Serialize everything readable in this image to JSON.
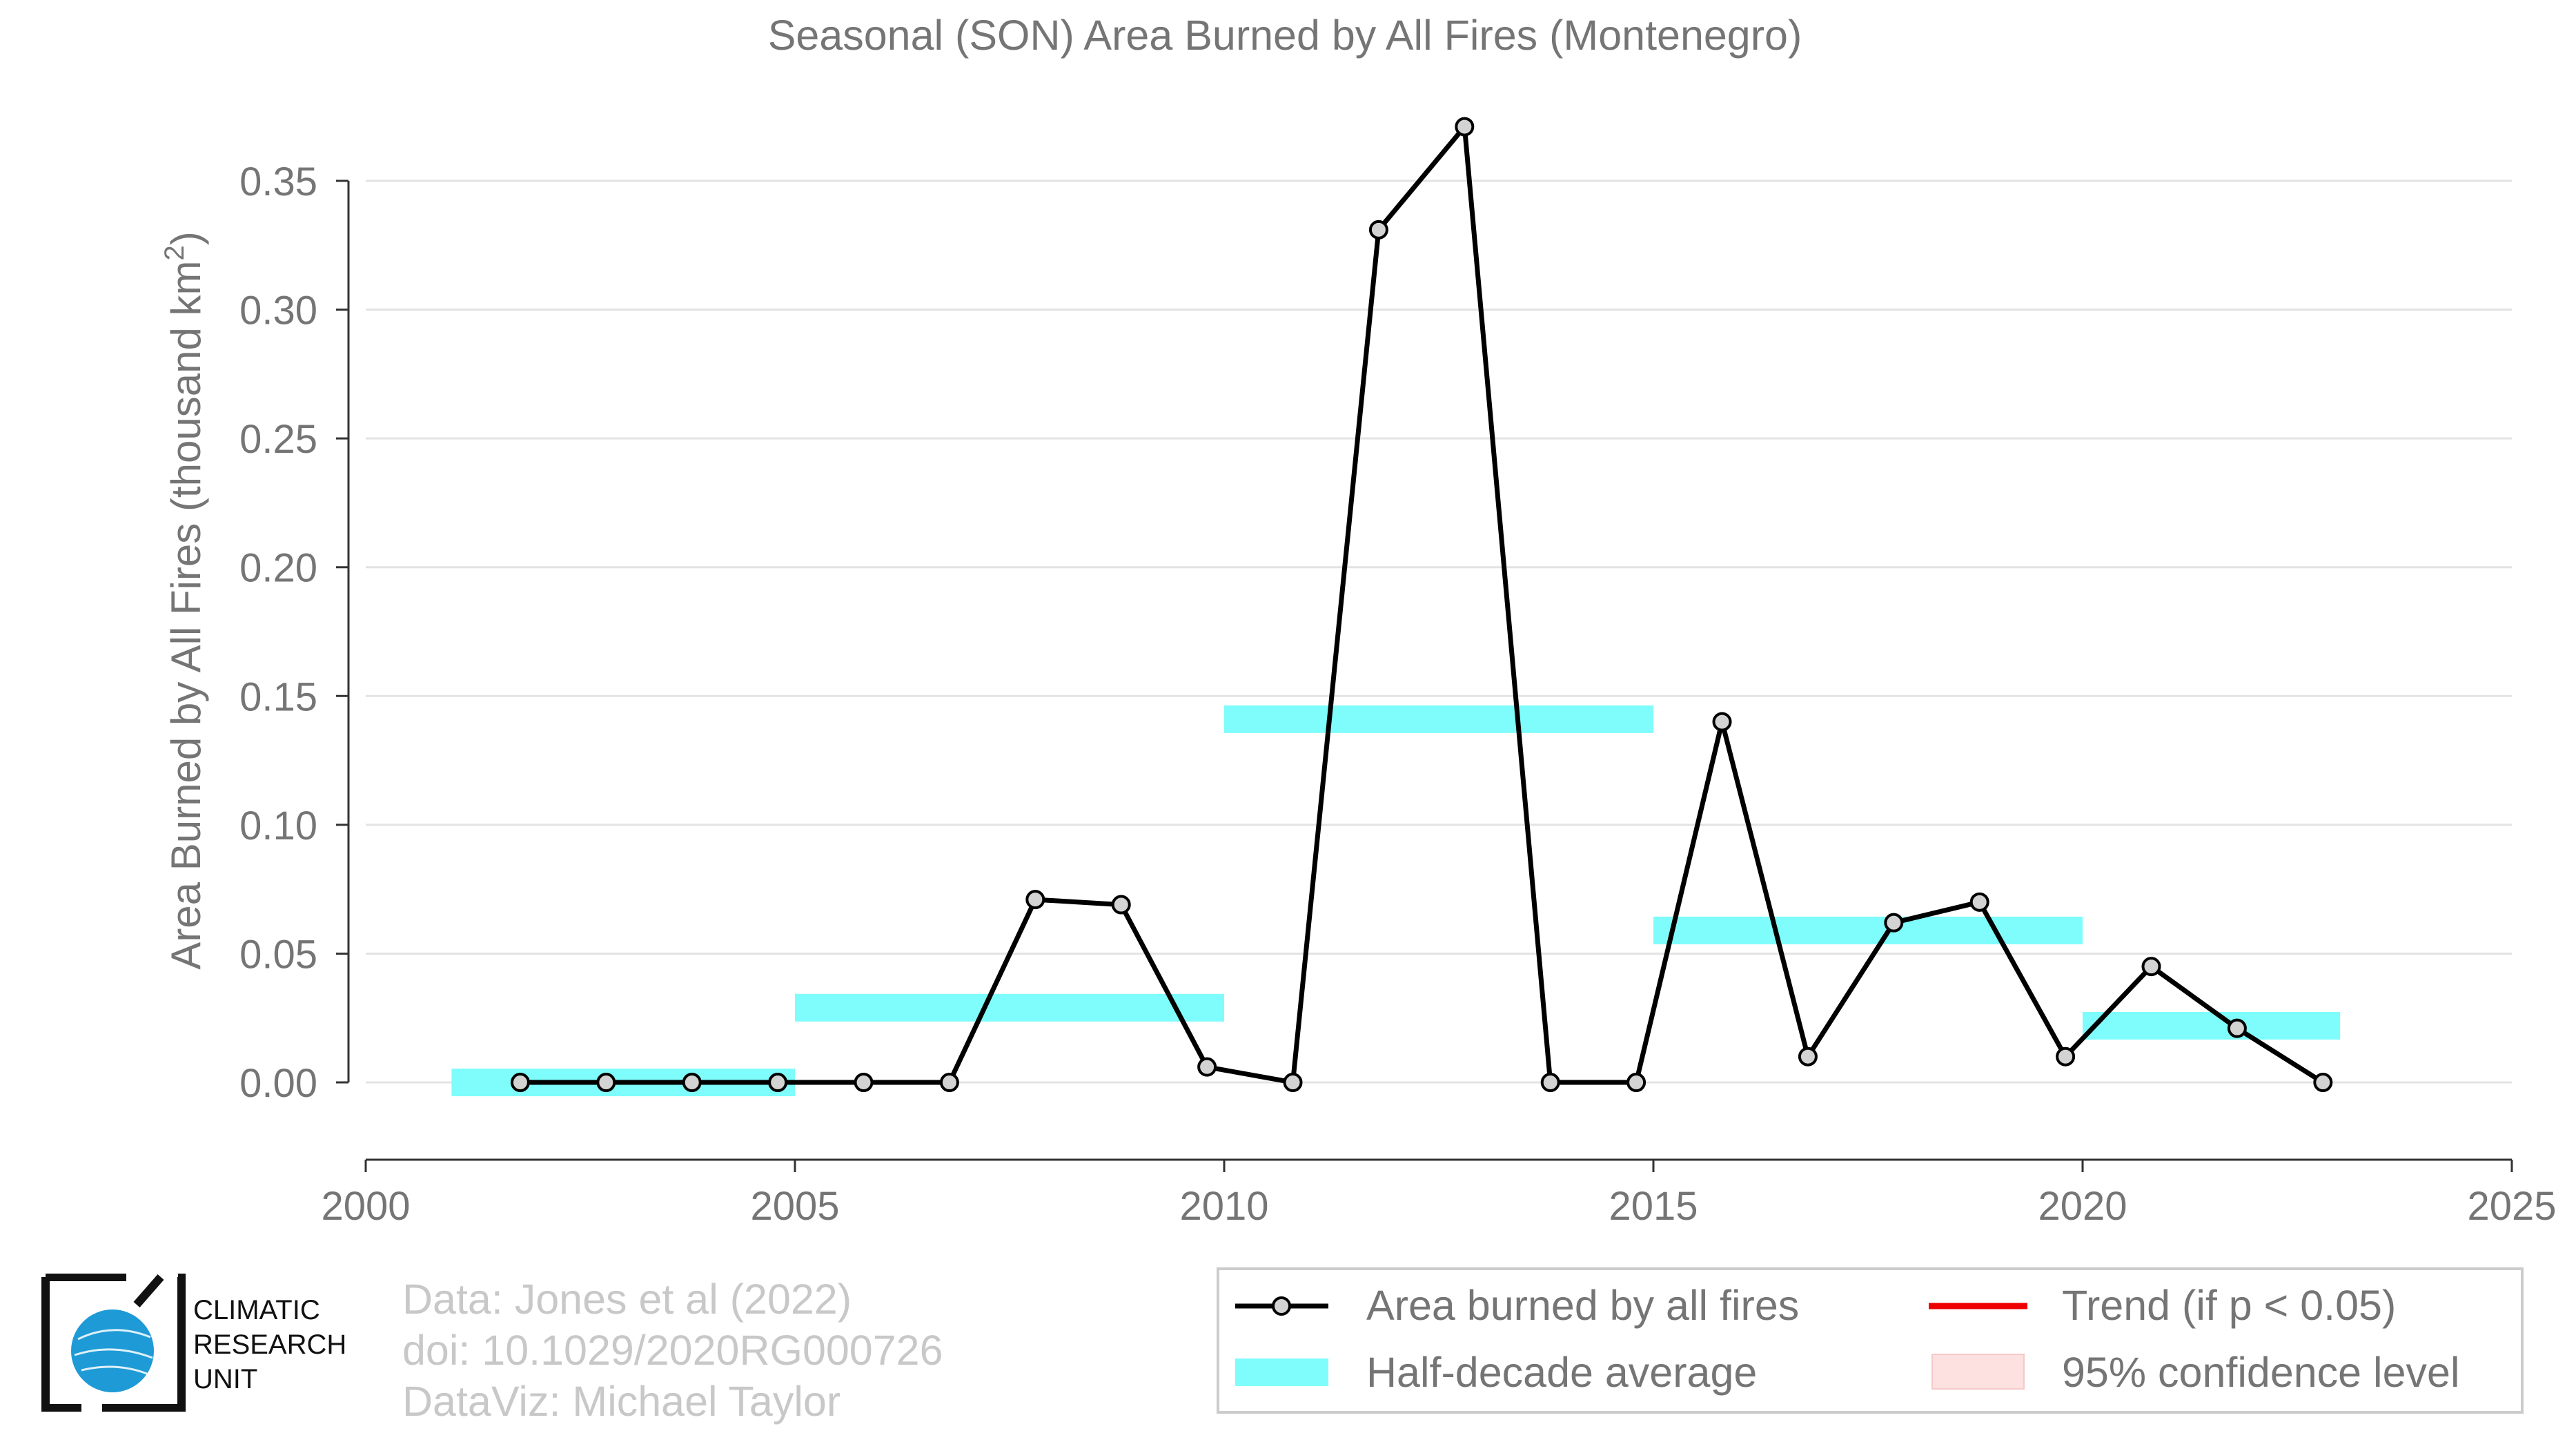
{
  "chart_data": {
    "type": "line",
    "title": "Seasonal (SON) Area Burned by All Fires (Montenegro)",
    "xlabel": "",
    "ylabel": "Area Burned by All Fires (thousand km²)",
    "ylabel_main": "Area Burned by All Fires (thousand km",
    "ylabel_sup": "2",
    "ylabel_end": ")",
    "xlim": [
      2000,
      2025
    ],
    "ylim": [
      -0.03,
      0.38
    ],
    "x_ticks": [
      2000,
      2005,
      2010,
      2015,
      2020,
      2025
    ],
    "y_ticks": [
      0.0,
      0.05,
      0.1,
      0.15,
      0.2,
      0.25,
      0.3,
      0.35
    ],
    "y_tick_labels": [
      "0.00",
      "0.05",
      "0.10",
      "0.15",
      "0.20",
      "0.25",
      "0.30",
      "0.35"
    ],
    "grid": "horizontal",
    "legend_position": "bottom-right",
    "series": [
      {
        "name": "Area burned by all fires",
        "color": "#000000",
        "x": [
          2001.8,
          2002.8,
          2003.8,
          2004.8,
          2005.8,
          2006.8,
          2007.8,
          2008.8,
          2009.8,
          2010.8,
          2011.8,
          2012.8,
          2013.8,
          2014.8,
          2015.8,
          2016.8,
          2017.8,
          2018.8,
          2019.8,
          2020.8,
          2021.8,
          2022.8
        ],
        "values": [
          0.0,
          0.0,
          0.0,
          0.0,
          0.0,
          0.0,
          0.071,
          0.069,
          0.006,
          0.0,
          0.331,
          0.371,
          0.0,
          0.0,
          0.14,
          0.01,
          0.062,
          0.07,
          0.01,
          0.045,
          0.021,
          0.0
        ]
      }
    ],
    "half_decade_average": {
      "name": "Half-decade average",
      "color": "#7ffcfc",
      "segments": [
        {
          "x0": 2001,
          "x1": 2005,
          "value": 0.0
        },
        {
          "x0": 2005,
          "x1": 2010,
          "value": 0.029
        },
        {
          "x0": 2010,
          "x1": 2015,
          "value": 0.141
        },
        {
          "x0": 2015,
          "x1": 2020,
          "value": 0.059
        },
        {
          "x0": 2020,
          "x1": 2023,
          "value": 0.022
        }
      ]
    },
    "legend": [
      {
        "label": "Area burned by all fires",
        "kind": "line-marker",
        "color": "#000000"
      },
      {
        "label": "Trend (if p < 0.05)",
        "kind": "line",
        "color": "#ee0000"
      },
      {
        "label": "Half-decade average",
        "kind": "band",
        "color": "#7ffcfc"
      },
      {
        "label": "95% confidence level",
        "kind": "box",
        "color": "#fde0e0"
      }
    ]
  },
  "credits": {
    "line1": "Data: Jones et al (2022)",
    "line2": "doi: 10.1029/2020RG000726",
    "line3": "DataViz: Michael Taylor"
  },
  "logo": {
    "line1": "CLIMATIC",
    "line2": "RESEARCH",
    "line3": "UNIT",
    "globe_color": "#1e9ad6"
  }
}
